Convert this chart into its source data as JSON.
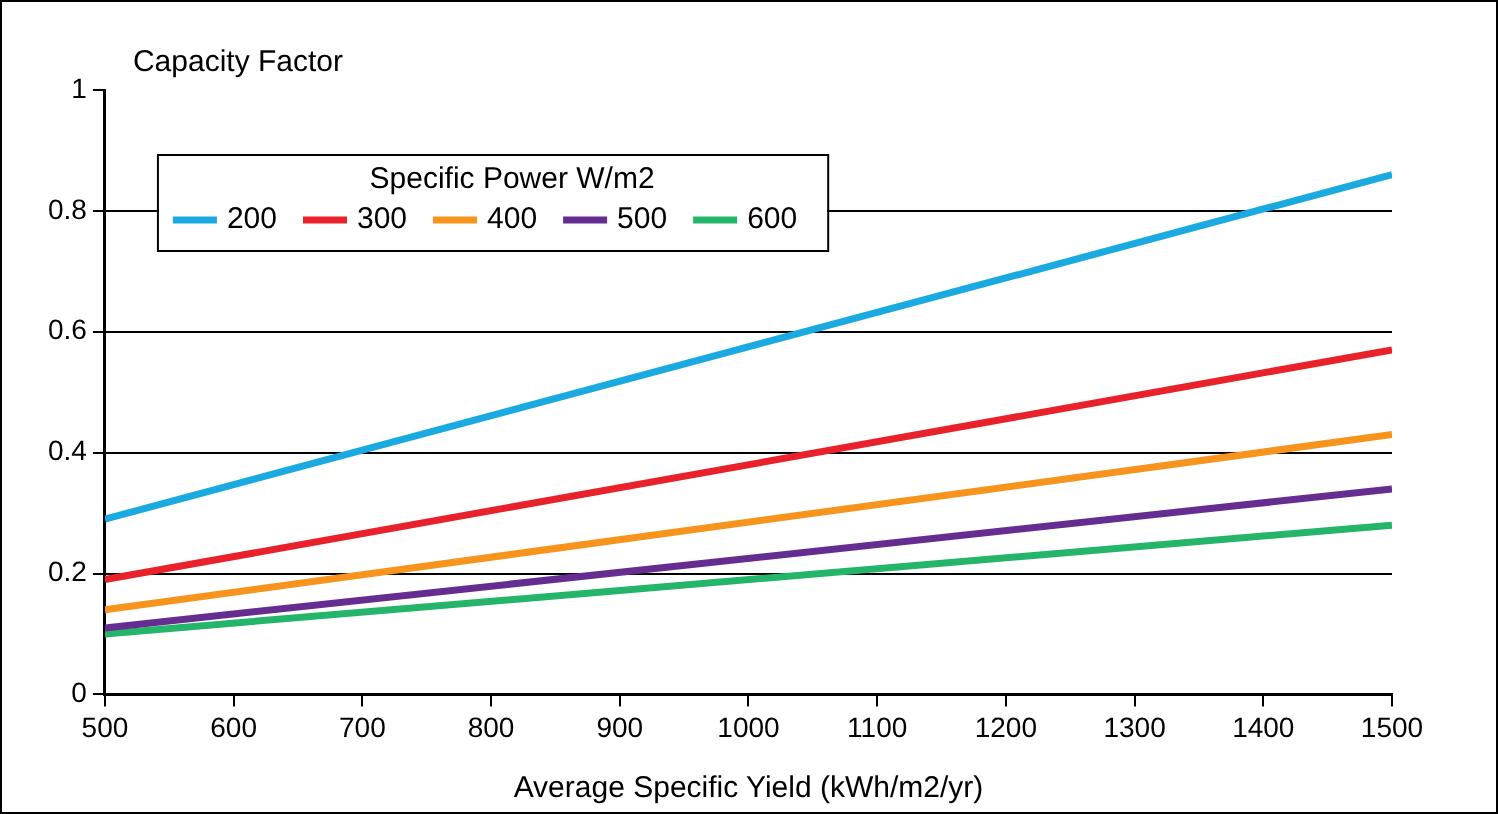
{
  "chart_data": {
    "type": "line",
    "xlabel": "Average Specific Yield (kWh/m2/yr)",
    "ylabel": "Capacity Factor",
    "legend_title": "Specific Power W/m2",
    "x": [
      500,
      1500
    ],
    "series": [
      {
        "name": "200",
        "color": "#1ba9e1",
        "values": [
          0.29,
          0.86
        ]
      },
      {
        "name": "300",
        "color": "#e8212a",
        "values": [
          0.19,
          0.57
        ]
      },
      {
        "name": "400",
        "color": "#f7941d",
        "values": [
          0.14,
          0.43
        ]
      },
      {
        "name": "500",
        "color": "#662d91",
        "values": [
          0.11,
          0.34
        ]
      },
      {
        "name": "600",
        "color": "#25b56a",
        "values": [
          0.1,
          0.28
        ]
      }
    ],
    "xlim": [
      500,
      1500
    ],
    "xticks": [
      500,
      600,
      700,
      800,
      900,
      1000,
      1100,
      1200,
      1300,
      1400,
      1500
    ],
    "ylim": [
      0,
      1
    ],
    "yticks": [
      0,
      0.2,
      0.4,
      0.6,
      0.8,
      1
    ],
    "grid": "y",
    "legend": "top left",
    "marker": "none",
    "line_style": "solid"
  }
}
